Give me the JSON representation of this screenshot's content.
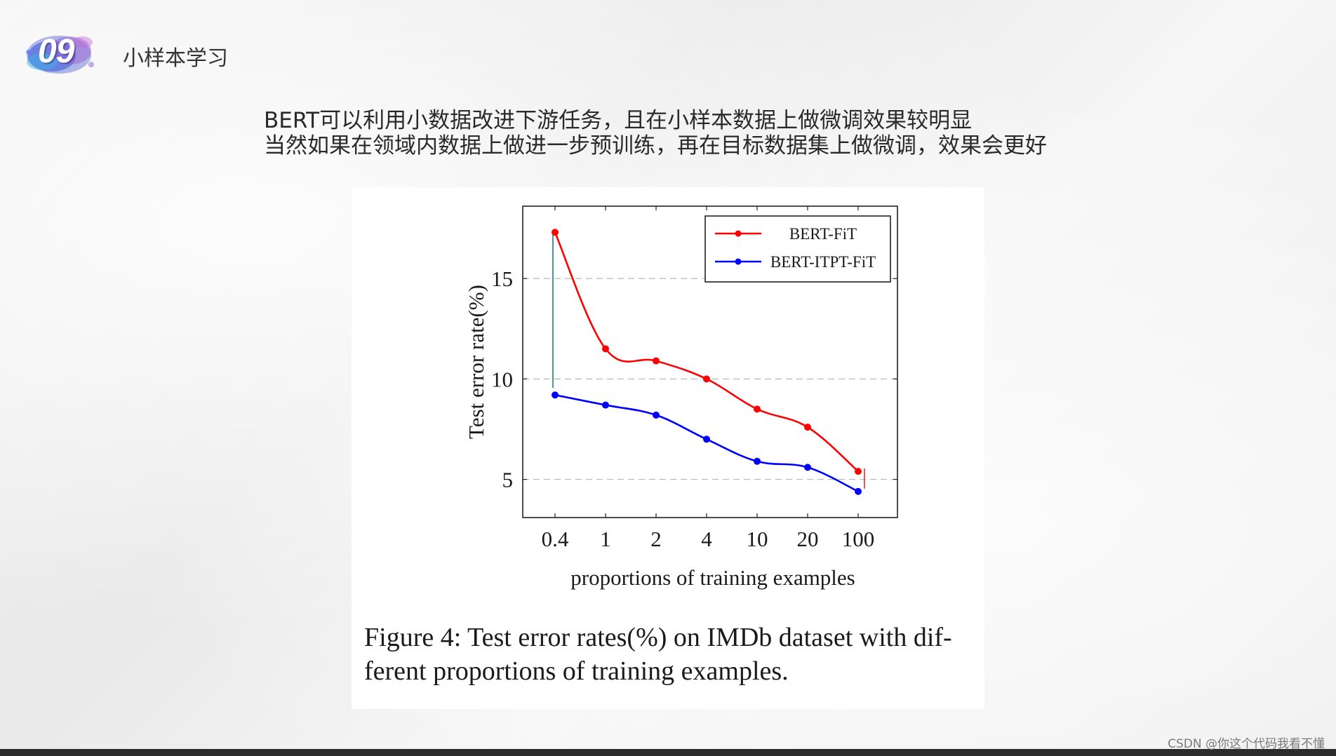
{
  "slide": {
    "badge_number": "09",
    "section_title": "小样本学习",
    "text_line_1": "BERT可以利用小数据改进下游任务，且在小样本数据上做微调效果较明显",
    "text_line_2": "当然如果在领域内数据上做进一步预训练，再在目标数据集上做微调，效果会更好",
    "watermark": "CSDN @你这个代码我看不懂"
  },
  "figure": {
    "caption_line_1": "Figure 4: Test error rates(%) on IMDb dataset with dif-",
    "caption_line_2": "ferent proportions of training examples."
  },
  "chart_data": {
    "type": "line",
    "title": "",
    "xlabel": "proportions of training examples",
    "ylabel": "Test error rate(%)",
    "categories": [
      "0.4",
      "1",
      "2",
      "4",
      "10",
      "20",
      "100"
    ],
    "ylim": [
      3.1,
      18.6
    ],
    "yticks": [
      5,
      10,
      15
    ],
    "grid": "horizontal dashed at y ticks",
    "legend_position": "top-right",
    "series": [
      {
        "name": "BERT-FiT",
        "color": "#ff0000",
        "values": [
          17.3,
          11.5,
          10.9,
          10.0,
          8.5,
          7.6,
          5.4
        ]
      },
      {
        "name": "BERT-ITPT-FiT",
        "color": "#0000ff",
        "values": [
          9.2,
          8.7,
          8.2,
          7.0,
          5.9,
          5.6,
          4.4
        ]
      }
    ]
  }
}
